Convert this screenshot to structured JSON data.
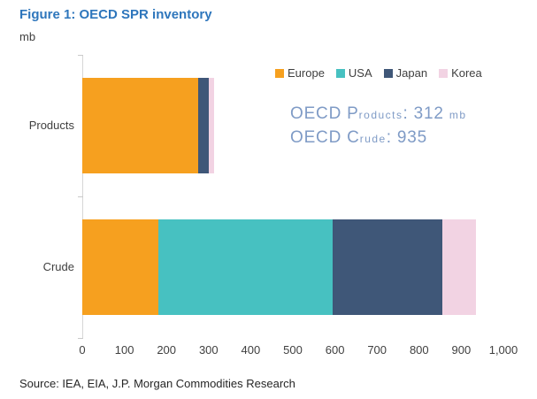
{
  "title": "Figure 1: OECD SPR inventory",
  "unit_label": "mb",
  "source": "Source: IEA, EIA, J.P. Morgan Commodities Research",
  "colors": {
    "title_blue": "#2E76BC",
    "annotation_blue": "#7F9BC6",
    "text": "#3F3F3F",
    "axis_line": "#D6D6D6"
  },
  "annotation_display": [
    {
      "big1": "OECD P",
      "small1": "roducts",
      "big2": ": 312 ",
      "small2": "mb"
    },
    {
      "big1": "OECD C",
      "small1": "rude",
      "big2": ": 935",
      "small2": ""
    }
  ],
  "chart_data": {
    "type": "bar",
    "orientation": "horizontal",
    "stacked": true,
    "title": "Figure 1: OECD SPR inventory",
    "xlabel": "mb",
    "ylabel": "",
    "categories": [
      "Products",
      "Crude"
    ],
    "series": [
      {
        "name": "Europe",
        "color": "#F6A01F",
        "values": [
          275,
          180
        ]
      },
      {
        "name": "USA",
        "color": "#47C1C1",
        "values": [
          0,
          415
        ]
      },
      {
        "name": "Japan",
        "color": "#3F5778",
        "values": [
          25,
          260
        ]
      },
      {
        "name": "Korea",
        "color": "#F2D3E3",
        "values": [
          12,
          80
        ]
      }
    ],
    "totals": [
      312,
      935
    ],
    "xlim": [
      0,
      1000
    ],
    "xticks": [
      {
        "v": 0,
        "label": "0"
      },
      {
        "v": 100,
        "label": "100"
      },
      {
        "v": 200,
        "label": "200"
      },
      {
        "v": 300,
        "label": "300"
      },
      {
        "v": 400,
        "label": "400"
      },
      {
        "v": 500,
        "label": "500"
      },
      {
        "v": 600,
        "label": "600"
      },
      {
        "v": 700,
        "label": "700"
      },
      {
        "v": 800,
        "label": "800"
      },
      {
        "v": 900,
        "label": "900"
      },
      {
        "v": 1000,
        "label": "1,000"
      }
    ],
    "grid": false,
    "legend_position": "top-right",
    "annotations": [
      "OECD Products: 312 mb",
      "OECD Crude: 935"
    ]
  }
}
